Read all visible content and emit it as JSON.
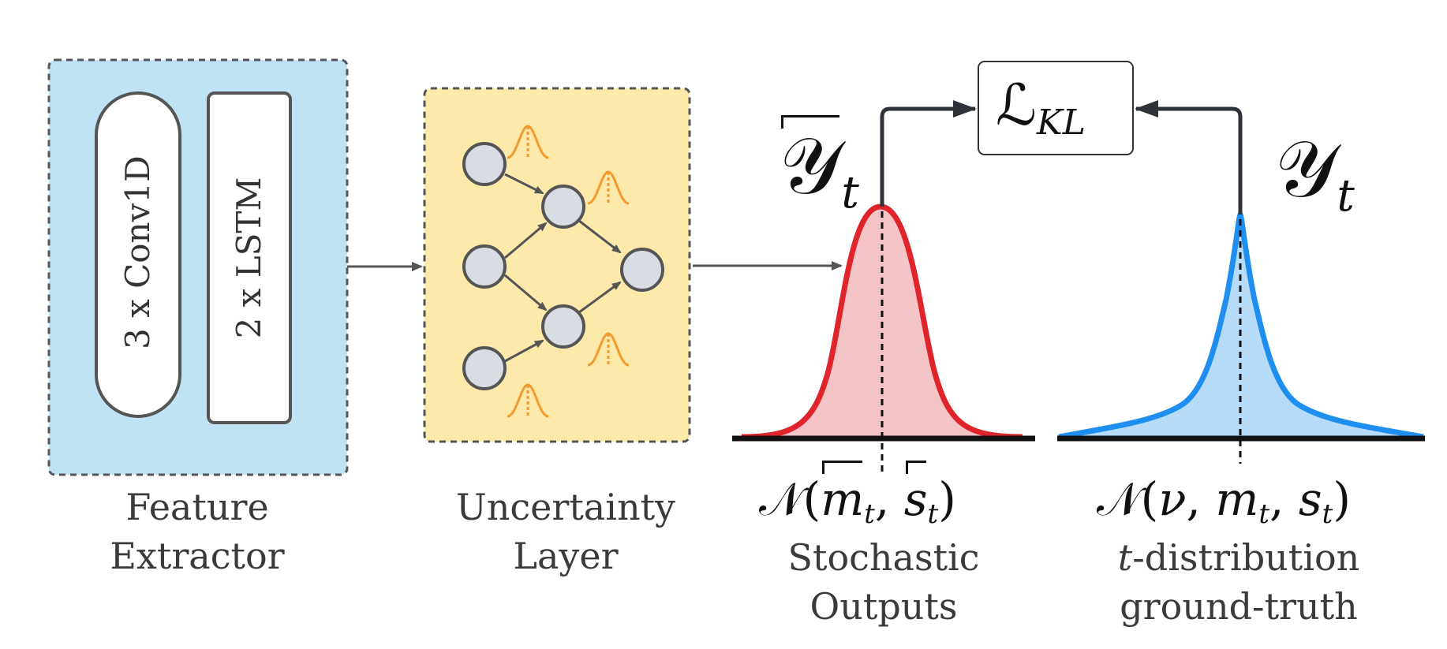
{
  "feature_extractor": {
    "conv_label": "3 x Conv1D",
    "lstm_label": "2 x LSTM",
    "caption_line1": "Feature",
    "caption_line2": "Extractor",
    "fill": "#bfe3f5"
  },
  "uncertainty_layer": {
    "caption_line1": "Uncertainty",
    "caption_line2": "Layer",
    "fill": "#fdeaaa",
    "node_fill": "#d9dde3",
    "dist_color": "#f29a2e"
  },
  "loss": {
    "symbol": "ℒ",
    "subscript": "KL"
  },
  "prediction": {
    "symbol": "𝒴",
    "subscript": "t",
    "dist_label": {
      "N": "𝒩",
      "open": "(",
      "m": "m",
      "m_sub": "t",
      "comma": ", ",
      "s": "s",
      "s_sub": "t",
      "close": ")"
    },
    "caption_line1": "Stochastic",
    "caption_line2": "Outputs",
    "curve_color": "#e0242b",
    "fill_color": "#f5c4c6"
  },
  "ground_truth": {
    "symbol": "𝒴",
    "subscript": "t",
    "dist_label": {
      "N": "𝒩",
      "open": "(",
      "nu": "ν",
      "comma1": ", ",
      "m": "m",
      "m_sub": "t",
      "comma2": ", ",
      "s": "s",
      "s_sub": "t",
      "close": ")"
    },
    "caption_line1_italic": "t",
    "caption_line1_rest": "-distribution",
    "caption_line2": "ground-truth",
    "curve_color": "#1e8ff0",
    "fill_color": "#b7dcfa"
  }
}
